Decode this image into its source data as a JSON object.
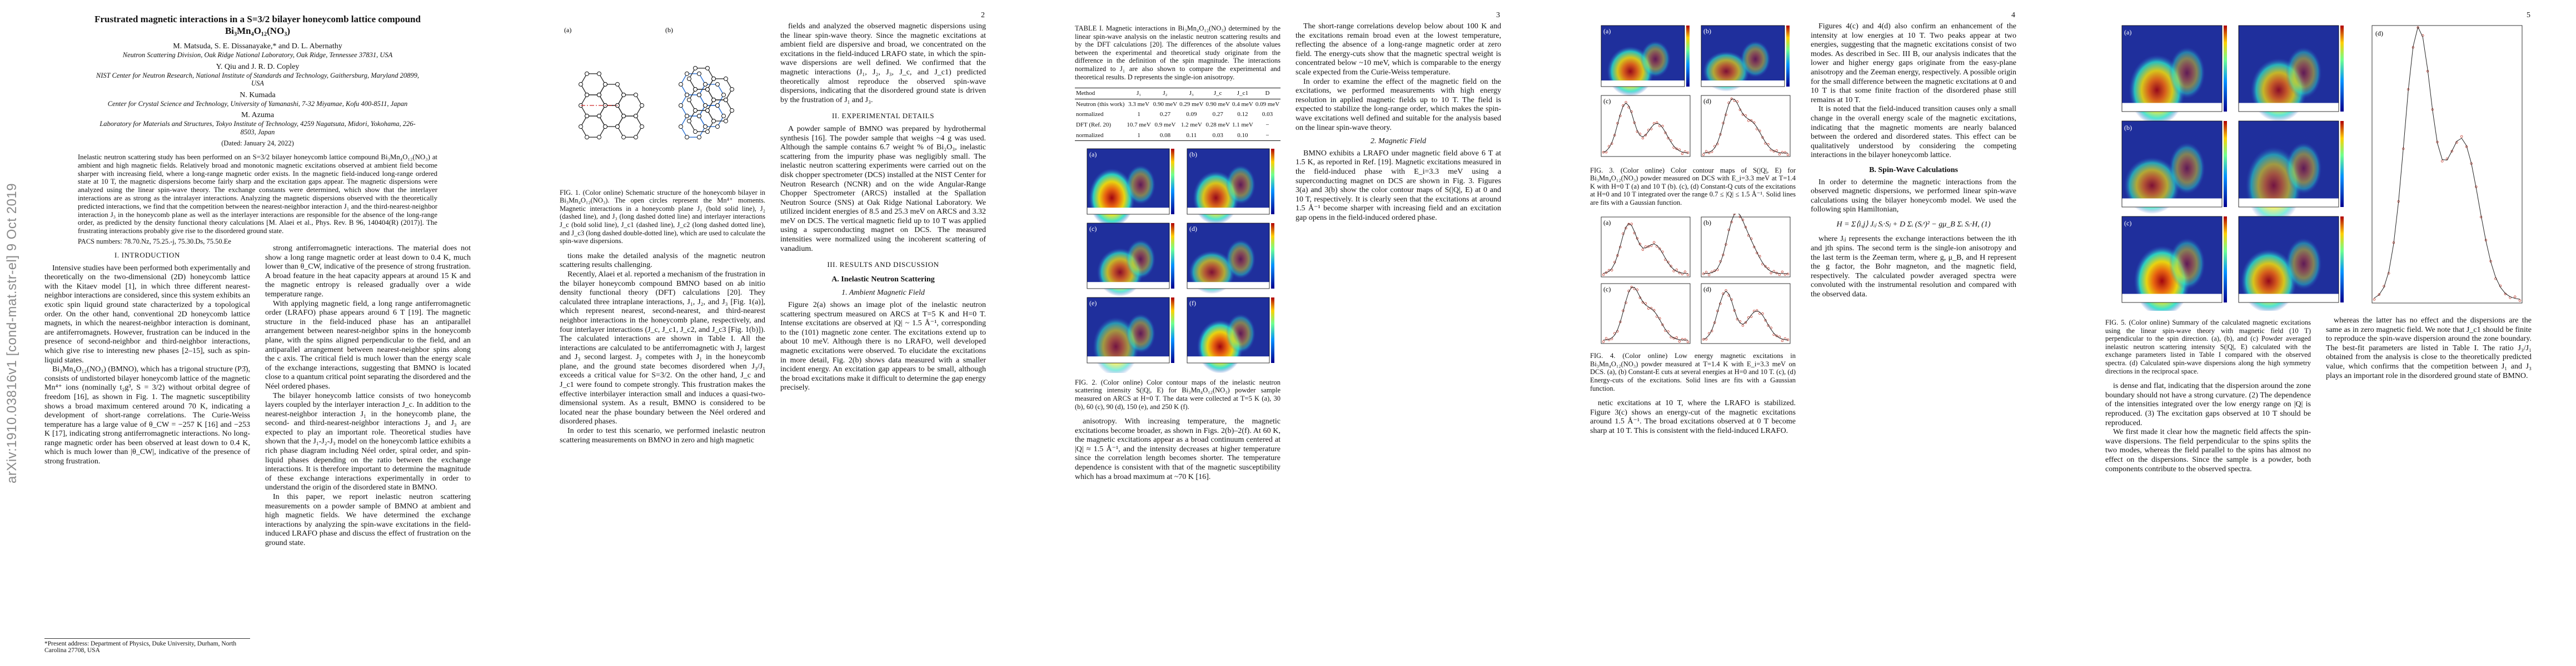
{
  "arxiv_stamp": "arXiv:1910.03816v1  [cond-mat.str-el]  9 Oct 2019",
  "page1": {
    "title": "Frustrated magnetic interactions in a S=3/2 bilayer honeycomb lattice compound Bi₃Mn₄O₁₂(NO₃)",
    "authors": [
      {
        "names": "M. Matsuda, S. E. Dissanayake,* and D. L. Abernathy",
        "affiliation": "Neutron Scattering Division, Oak Ridge National Laboratory, Oak Ridge, Tennessee 37831, USA"
      },
      {
        "names": "Y. Qiu and J. R. D. Copley",
        "affiliation": "NIST Center for Neutron Research, National Institute of Standards and Technology, Gaithersburg, Maryland 20899, USA"
      },
      {
        "names": "N. Kumada",
        "affiliation": "Center for Crystal Science and Technology, University of Yamanashi, 7-32 Miyamae, Kofu 400-8511, Japan"
      },
      {
        "names": "M. Azuma",
        "affiliation": "Laboratory for Materials and Structures, Tokyo Institute of Technology, 4259 Nagatsuta, Midori, Yokohama, 226-8503, Japan"
      }
    ],
    "dated": "(Dated: January 24, 2022)",
    "abstract": "Inelastic neutron scattering study has been performed on an S=3/2 bilayer honeycomb lattice compound Bi₃Mn₄O₁₂(NO₃) at ambient and high magnetic fields. Relatively broad and monotonic magnetic excitations observed at ambient field become sharper with increasing field, where a long-range magnetic order exists. In the magnetic field-induced long-range ordered state at 10 T, the magnetic dispersions become fairly sharp and the excitation gaps appear. The magnetic dispersions were analyzed using the linear spin-wave theory. The exchange constants were determined, which show that the interlayer interactions are as strong as the intralayer interactions. Analyzing the magnetic dispersions observed with the theoretically predicted interactions, we find that the competition between the nearest-neighbor interaction J₁ and the third-nearest-neighbor interaction J₃ in the honeycomb plane as well as the interlayer interactions are responsible for the absence of the long-range order, as predicted by the density functional theory calculations [M. Alaei et al., Phys. Rev. B 96, 140404(R) (2017)]. The frustrating interactions probably give rise to the disordered ground state.",
    "pacs": "PACS numbers: 78.70.Nz, 75.25.-j, 75.30.Ds, 75.50.Ee",
    "left": [
      {
        "h": "I. INTRODUCTION"
      },
      {
        "p": "Intensive studies have been performed both experimentally and theoretically on the two-dimensional (2D) honeycomb lattice with the Kitaev model [1], in which three different nearest-neighbor interactions are considered, since this system exhibits an exotic spin liquid ground state characterized by a topological order. On the other hand, conventional 2D honeycomb lattice magnets, in which the nearest-neighbor interaction is dominant, are antiferromagnets. However, frustration can be induced in the presence of second-neighbor and third-neighbor interactions, which give rise to interesting new phases [2–15], such as spin-liquid states."
      },
      {
        "p": "Bi₃Mn₄O₁₂(NO₃) (BMNO), which has a trigonal structure (P3̄), consists of undistorted bilayer honeycomb lattice of the magnetic Mn⁴⁺ ions (nominally t₂g³, S = 3/2) without orbital degree of freedom [16], as shown in Fig. 1. The magnetic susceptibility shows a broad maximum centered around 70 K, indicating a development of short-range correlations. The Curie-Weiss temperature has a large value of θ_CW = −257 K [16] and −253 K [17], indicating strong antiferromagnetic interactions. No long-range magnetic order has been observed at least down to 0.4 K, which is much lower than |θ_CW|, indicative of the presence of strong frustration."
      }
    ],
    "right": [
      {
        "p": "strong antiferromagnetic interactions. The material does not show a long range magnetic order at least down to 0.4 K, much lower than θ_CW, indicative of the presence of strong frustration. A broad feature in the heat capacity appears at around 15 K and the magnetic entropy is released gradually over a wide temperature range."
      },
      {
        "p": "With applying magnetic field, a long range antiferromagnetic order (LRAFO) phase appears around 6 T [19]. The magnetic structure in the field-induced phase has an antiparallel arrangement between nearest-neighbor spins in the honeycomb plane, with the spins aligned perpendicular to the field, and an antiparallel arrangement between nearest-neighbor spins along the c axis. The critical field is much lower than the energy scale of the exchange interactions, suggesting that BMNO is located close to a quantum critical point separating the disordered and the Néel ordered phases."
      },
      {
        "p": "The bilayer honeycomb lattice consists of two honeycomb layers coupled by the interlayer interaction J_c. In addition to the nearest-neighbor interaction J₁ in the honeycomb plane, the second- and third-nearest-neighbor interactions J₂ and J₃ are expected to play an important role. Theoretical studies have shown that the J₁-J₂-J₃ model on the honeycomb lattice exhibits a rich phase diagram including Néel order, spiral order, and spin-liquid phases depending on the ratio between the exchange interactions. It is therefore important to determine the magnitude of these exchange interactions experimentally in order to understand the origin of the disordered state in BMNO."
      },
      {
        "p": "In this paper, we report inelastic neutron scattering measurements on a powder sample of BMNO at ambient and high magnetic fields. We have determined the exchange interactions by analyzing the spin-wave excitations in the field-induced LRAFO phase and discuss the effect of frustration on the ground state."
      }
    ],
    "footnote": "*Present address: Department of Physics, Duke University, Durham, North Carolina 27708, USA"
  },
  "page2": {
    "number": "2",
    "figure1": {
      "panels": [
        "(a)",
        "(b)"
      ],
      "caption": "FIG. 1. (Color online) Schematic structure of the honeycomb bilayer in Bi₃Mn₄O₁₂(NO₃). The open circles represent the Mn⁴⁺ moments. Magnetic interactions in a honeycomb plane J₁ (bold solid line), J₂ (dashed line), and J₃ (long dashed dotted line) and interlayer interactions J_c (bold solid line), J_c1 (dashed line), J_c2 (long dashed dotted line), and J_c3 (long dashed double-dotted line), which are used to calculate the spin-wave dispersions."
    },
    "left": [
      {
        "p": "tions make the detailed analysis of the magnetic neutron scattering results challenging."
      },
      {
        "p": "Recently, Alaei et al. reported a mechanism of the frustration in the bilayer honeycomb compound BMNO based on ab initio density functional theory (DFT) calculations [20]. They calculated three intraplane interactions, J₁, J₂, and J₃ [Fig. 1(a)], which represent nearest, second-nearest, and third-nearest neighbor interactions in the honeycomb plane, respectively, and four interlayer interactions (J_c, J_c1, J_c2, and J_c3 [Fig. 1(b)]). The calculated interactions are shown in Table I. All the interactions are calculated to be antiferromagnetic with J₁ largest and J₃ second largest. J₃ competes with J₁ in the honeycomb plane, and the ground state becomes disordered when J₃/J₁ exceeds a critical value for S=3/2. On the other hand, J_c and J_c1 were found to compete strongly. This frustration makes the effective interbilayer interaction small and induces a quasi-two-dimensional system. As a result, BMNO is considered to be located near the phase boundary between the Néel ordered and disordered phases."
      },
      {
        "p": "In order to test this scenario, we performed inelastic neutron scattering measurements on BMNO in zero and high magnetic"
      }
    ],
    "right": [
      {
        "p": "fields and analyzed the observed magnetic dispersions using the linear spin-wave theory. Since the magnetic excitations at ambient field are dispersive and broad, we concentrated on the excitations in the field-induced LRAFO state, in which the spin-wave dispersions are well defined. We confirmed that the magnetic interactions (J₁, J₂, J₃, J_c, and J_c1) predicted theoretically almost reproduce the observed spin-wave dispersions, indicating that the disordered ground state is driven by the frustration of J₁ and J₃."
      },
      {
        "h": "II. EXPERIMENTAL DETAILS"
      },
      {
        "p": "A powder sample of BMNO was prepared by hydrothermal synthesis [16]. The powder sample that weighs ~4 g was used. Although the sample contains 6.7 weight % of Bi₂O₃, inelastic scattering from the impurity phase was negligibly small. The inelastic neutron scattering experiments were carried out on the disk chopper spectrometer (DCS) installed at the NIST Center for Neutron Research (NCNR) and on the wide Angular-Range Chopper Spectrometer (ARCS) installed at the Spallation Neutron Source (SNS) at Oak Ridge National Laboratory. We utilized incident energies of 8.5 and 25.3 meV on ARCS and 3.32 meV on DCS. The vertical magnetic field up to 10 T was applied using a superconducting magnet on DCS. The measured intensities were normalized using the incoherent scattering of vanadium."
      },
      {
        "h": "III. RESULTS AND DISCUSSION"
      },
      {
        "sub": "A. Inelastic Neutron Scattering"
      },
      {
        "subsub": "1. Ambient Magnetic Field"
      },
      {
        "p": "Figure 2(a) shows an image plot of the inelastic neutron scattering spectrum measured on ARCS at T=5 K and H=0 T. Intense excitations are observed at |Q| ~ 1.5 Å⁻¹, corresponding to the (101) magnetic zone center. The excitations extend up to about 10 meV. Although there is no LRAFO, well developed magnetic excitations were observed. To elucidate the excitations in more detail, Fig. 2(b) shows data measured with a smaller incident energy. An excitation gap appears to be small, although the broad excitations make it difficult to determine the gap energy precisely."
      }
    ]
  },
  "page3": {
    "number": "3",
    "table": {
      "caption": "TABLE I. Magnetic interactions in Bi₃Mn₄O₁₂(NO₃) determined by the linear spin-wave analysis on the inelastic neutron scattering results and by the DFT calculations [20]. The differences of the absolute values between the experimental and theoretical study originate from the difference in the definition of the spin magnitude. The interactions normalized to J₁ are also shown to compare the experimental and theoretical results. D represents the single-ion anisotropy.",
      "header": [
        "Method",
        "J₁",
        "J₂",
        "J₃",
        "J_c",
        "J_c1",
        "D",
        "θ_CW"
      ],
      "rows": [
        [
          "Neutron (this work)",
          "3.3 meV",
          "0.90 meV",
          "0.29 meV",
          "0.90 meV",
          "0.4 meV",
          "0.09 meV",
          "−253.2 K"
        ],
        [
          "normalized",
          "1",
          "0.27",
          "0.09",
          "0.27",
          "0.12",
          "0.03",
          "−"
        ],
        [
          "DFT (Ref. 20)",
          "10.7 meV",
          "0.9 meV",
          "1.2 meV",
          "0.28 meV",
          "1.1 meV",
          "−",
          "−244 K"
        ],
        [
          "normalized",
          "1",
          "0.08",
          "0.11",
          "0.03",
          "0.10",
          "−",
          "−"
        ]
      ]
    },
    "figure2": {
      "panels": [
        "(a)",
        "(b)",
        "(c)",
        "(d)",
        "(e)",
        "(f)"
      ],
      "caption": "FIG. 2. (Color online) Color contour maps of the inelastic neutron scattering intensity S(|Q|, E) for Bi₃Mn₄O₁₂(NO₃) powder sample measured on ARCS at H=0 T. The data were collected at T=5 K (a), 30 (b), 60 (c), 90 (d), 150 (e), and 250 K (f)."
    },
    "left": [
      {
        "p": "anisotropy. With increasing temperature, the magnetic excitations become broader, as shown in Figs. 2(b)–2(f). At 60 K, the magnetic excitations appear as a broad continuum centered at |Q| ≈ 1.5 Å⁻¹, and the intensity decreases at higher temperature since the correlation length becomes shorter. The temperature dependence is consistent with that of the magnetic susceptibility which has a broad maximum at ~70 K [16]."
      }
    ],
    "right": [
      {
        "p": "The short-range correlations develop below about 100 K and the excitations remain broad even at the lowest temperature, reflecting the absence of a long-range magnetic order at zero field. The energy-cuts show that the magnetic spectral weight is concentrated below ~10 meV, which is comparable to the energy scale expected from the Curie-Weiss temperature."
      },
      {
        "p": "In order to examine the effect of the magnetic field on the excitations, we performed measurements with high energy resolution in applied magnetic fields up to 10 T. The field is expected to stabilize the long-range order, which makes the spin-wave excitations well defined and suitable for the analysis based on the linear spin-wave theory."
      },
      {
        "subsub": "2. Magnetic Field"
      },
      {
        "p": "BMNO exhibits a LRAFO under magnetic field above 6 T at 1.5 K, as reported in Ref. [19]. Magnetic excitations measured in the field-induced phase with E_i=3.3 meV using a superconducting magnet on DCS are shown in Fig. 3. Figures 3(a) and 3(b) show the color contour maps of S(|Q|, E) at 0 and 10 T, respectively. It is clearly seen that the excitations at around 1.5 Å⁻¹ become sharper with increasing field and an excitation gap opens in the field-induced ordered phase."
      }
    ]
  },
  "page4": {
    "number": "4",
    "figure3": {
      "panels": [
        "(a)",
        "(b)",
        "(c)",
        "(d)"
      ],
      "caption": "FIG. 3. (Color online) Color contour maps of S(|Q|, E) for Bi₃Mn₄O₁₂(NO₃) powder measured on DCS with E_i=3.3 meV at T=1.4 K with H=0 T (a) and 10 T (b). (c), (d) Constant-Q cuts of the excitations at H=0 and 10 T integrated over the range 0.7 ≤ |Q| ≤ 1.5 Å⁻¹. Solid lines are fits with a Gaussian function."
    },
    "figure4": {
      "panels": [
        "(a)",
        "(b)",
        "(c)",
        "(d)"
      ],
      "caption": "FIG. 4. (Color online) Low energy magnetic excitations in Bi₃Mn₄O₁₂(NO₃) powder measured at T=1.4 K with E_i=3.3 meV on DCS. (a), (b) Constant-E cuts at several energies at H=0 and 10 T. (c), (d) Energy-cuts of the excitations. Solid lines are fits with a Gaussian function."
    },
    "left": [
      {
        "p": "netic excitations at 10 T, where the LRAFO is stabilized. Figure 3(c) shows an energy-cut of the magnetic excitations around 1.5 Å⁻¹. The broad excitations observed at 0 T become sharp at 10 T. This is consistent with the field-induced LRAFO."
      }
    ],
    "right": [
      {
        "p": "Figures 4(c) and 4(d) also confirm an enhancement of the intensity at low energies at 10 T. Two peaks appear at two energies, suggesting that the magnetic excitations consist of two modes. As described in Sec. III B, our analysis indicates that the lower and higher energy gaps originate from the easy-plane anisotropy and the Zeeman energy, respectively. A possible origin for the small difference between the magnetic excitations at 0 and 10 T is that some finite fraction of the disordered phase still remains at 10 T."
      },
      {
        "p": "It is noted that the field-induced transition causes only a small change in the overall energy scale of the magnetic excitations, indicating that the magnetic moments are nearly balanced between the ordered and disordered states. This effect can be qualitatively understood by considering the competing interactions in the bilayer honeycomb lattice."
      },
      {
        "sub": "B. Spin-Wave Calculations"
      },
      {
        "p": "In order to determine the magnetic interactions from the observed magnetic dispersions, we performed linear spin-wave calculations using the bilayer honeycomb model. We used the following spin Hamiltonian,"
      },
      {
        "eq": "H = Σ⟨i,j⟩ Jᵢⱼ Sᵢ·Sⱼ + D Σᵢ (Sᵢᶻ)² − gμ_B Σᵢ Sᵢ·H,     (1)"
      },
      {
        "p": "where Jᵢⱼ represents the exchange interactions between the ith and jth spins. The second term is the single-ion anisotropy and the last term is the Zeeman term, where g, μ_B, and H represent the g factor, the Bohr magneton, and the magnetic field, respectively. The calculated powder averaged spectra were convoluted with the instrumental resolution and compared with the observed data."
      }
    ]
  },
  "page5": {
    "number": "5",
    "figure5": {
      "panels": [
        "(a)",
        "(b)",
        "(c)",
        "(d)"
      ],
      "caption": "FIG. 5. (Color online) Summary of the calculated magnetic excitations using the linear spin-wave theory with magnetic field (10 T) perpendicular to the spin direction. (a), (b), and (c) Powder averaged inelastic neutron scattering intensity S(|Q|, E) calculated with the exchange parameters listed in Table I compared with the observed spectra. (d) Calculated spin-wave dispersions along the high symmetry directions in the reciprocal space."
    },
    "left": [
      {
        "p": "is dense and flat, indicating that the dispersion around the zone boundary should not have a strong curvature. (2) The dependence of the intensities integrated over the low energy range on |Q| is reproduced. (3) The excitation gaps observed at 10 T should be reproduced."
      },
      {
        "p": "We first made it clear how the magnetic field affects the spin-wave dispersions. The field perpendicular to the spins splits the two modes, whereas the field parallel to the spins has almost no effect on the dispersions. Since the sample is a powder, both components contribute to the observed spectra."
      }
    ],
    "right": [
      {
        "p": "whereas the latter has no effect and the dispersions are the same as in zero magnetic field. We note that J_c1 should be finite to reproduce the spin-wave dispersion around the zone boundary. The best-fit parameters are listed in Table I. The ratio J₃/J₁ obtained from the analysis is close to the theoretically predicted value, which confirms that the competition between J₁ and J₃ plays an important role in the disordered ground state of BMNO."
      }
    ]
  }
}
